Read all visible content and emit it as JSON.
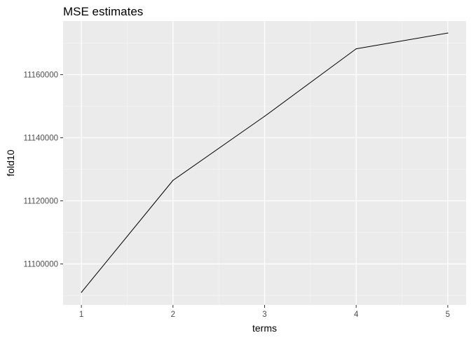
{
  "chart_data": {
    "type": "line",
    "title": "MSE estimates",
    "xlabel": "terms",
    "ylabel": "fold10",
    "x": [
      1,
      2,
      3,
      4,
      5
    ],
    "series": [
      {
        "values": [
          11091000,
          11126500,
          11146800,
          11168200,
          11173200
        ]
      }
    ],
    "xlim": [
      0.8,
      5.2
    ],
    "ylim": [
      11087000,
      11177000
    ],
    "x_ticks": [
      1,
      2,
      3,
      4,
      5
    ],
    "x_tick_labels": [
      "1",
      "2",
      "3",
      "4",
      "5"
    ],
    "y_ticks": [
      11100000,
      11120000,
      11140000,
      11160000
    ],
    "y_tick_labels": [
      "11100000",
      "11120000",
      "11140000",
      "11160000"
    ],
    "grid": true,
    "legend": "none",
    "colors": {
      "panel_background": "#ebebeb",
      "grid_major": "#ffffff",
      "grid_minor": "#f5f5f5",
      "line": "#000000",
      "tick_mark": "#333333"
    }
  }
}
